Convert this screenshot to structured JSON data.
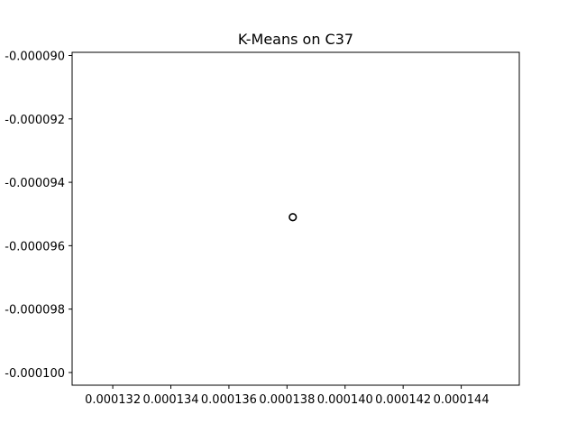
{
  "chart_data": {
    "type": "scatter",
    "title": "K-Means on C37",
    "xlabel": "",
    "ylabel": "",
    "xlim": [
      0.0001306,
      0.000146
    ],
    "ylim": [
      -0.0001004,
      -8.99e-05
    ],
    "x_ticks": [
      0.000132,
      0.000134,
      0.000136,
      0.000138,
      0.00014,
      0.000142,
      0.000144
    ],
    "x_tick_labels": [
      "0.000132",
      "0.000134",
      "0.000136",
      "0.000138",
      "0.000140",
      "0.000142",
      "0.000144"
    ],
    "y_ticks": [
      -9e-05,
      -9.2e-05,
      -9.4e-05,
      -9.6e-05,
      -9.8e-05,
      -0.0001
    ],
    "y_tick_labels": [
      "-0.000090",
      "-0.000092",
      "-0.000094",
      "-0.000096",
      "-0.000098",
      "-0.000100"
    ],
    "grid": false,
    "series": [
      {
        "points": [
          {
            "x": 0.0001382,
            "y": -9.51e-05
          }
        ],
        "marker": "hollow-circle",
        "color": "#000000"
      }
    ]
  }
}
